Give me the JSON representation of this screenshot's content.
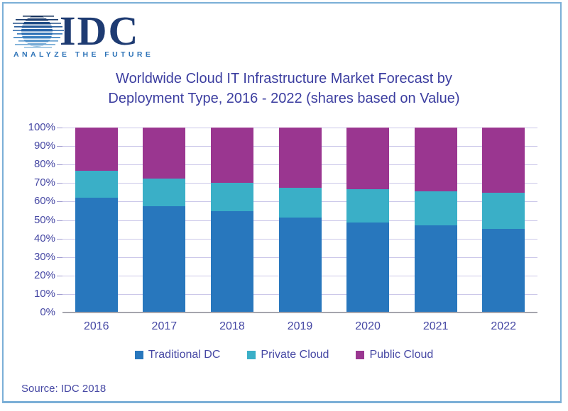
{
  "logo": {
    "name": "IDC",
    "tagline": "ANALYZE THE FUTURE"
  },
  "title": {
    "line1": "Worldwide Cloud IT Infrastructure Market Forecast by",
    "line2": "Deployment Type, 2016 - 2022 (shares based on Value)"
  },
  "source": "Source: IDC 2018",
  "colors": {
    "traditional_dc": "#2877BD",
    "private_cloud": "#3AAFC7",
    "public_cloud": "#9A3690",
    "axis_text": "#4648A4",
    "title_text": "#3C3EA0",
    "gridline": "#CBC7E9",
    "baseline": "#A5A5AD",
    "frame_border": "#7BAFD7",
    "logo_navy": "#1E3B72",
    "tagline_blue": "#2E74B8"
  },
  "chart_data": {
    "type": "bar",
    "stacked": true,
    "title": "Worldwide Cloud IT Infrastructure Market Forecast by Deployment Type, 2016 - 2022 (shares based on Value)",
    "categories": [
      "2016",
      "2017",
      "2018",
      "2019",
      "2020",
      "2021",
      "2022"
    ],
    "series": [
      {
        "name": "Traditional DC",
        "color": "#2877BD",
        "values": [
          62,
          57.5,
          54.5,
          51,
          48.5,
          47,
          45
        ]
      },
      {
        "name": "Private Cloud",
        "color": "#3AAFC7",
        "values": [
          14.5,
          15,
          15.5,
          16.5,
          18,
          18.5,
          19.5
        ]
      },
      {
        "name": "Public Cloud",
        "color": "#9A3690",
        "values": [
          23.5,
          27.5,
          30,
          32.5,
          33.5,
          34.5,
          35.5
        ]
      }
    ],
    "ylim": [
      0,
      100
    ],
    "y_ticks": [
      "0%",
      "10%",
      "20%",
      "30%",
      "40%",
      "50%",
      "60%",
      "70%",
      "80%",
      "90%",
      "100%"
    ],
    "y_unit": "percent_share",
    "grid": true,
    "legend_position": "bottom",
    "legend": [
      "Traditional DC",
      "Private Cloud",
      "Public Cloud"
    ],
    "source": "Source: IDC 2018"
  }
}
